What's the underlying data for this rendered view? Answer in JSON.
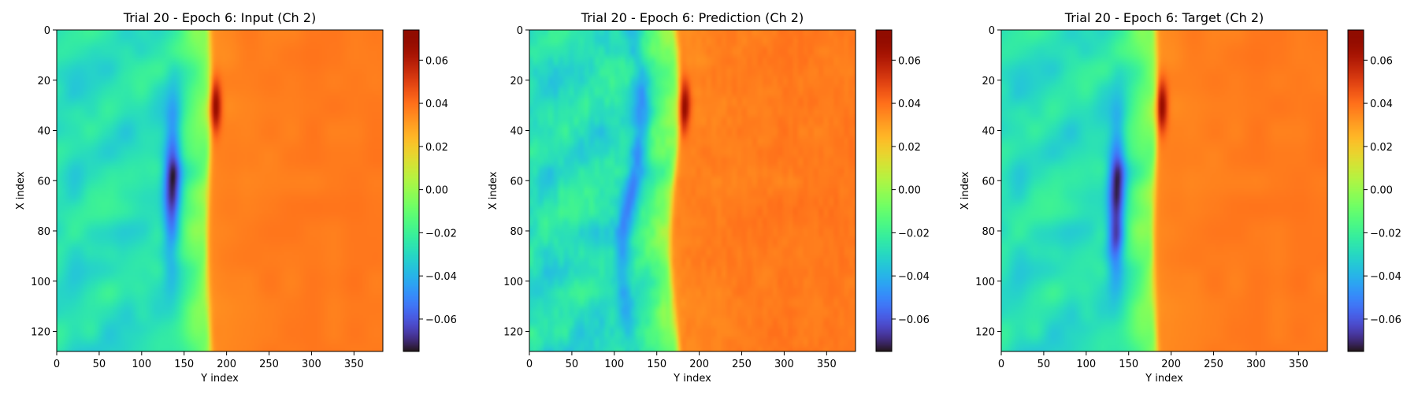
{
  "figure": {
    "panels": [
      {
        "title": "Trial 20 - Epoch 6: Input (Ch 2)",
        "field": "input"
      },
      {
        "title": "Trial 20 - Epoch 6: Prediction (Ch 2)",
        "field": "prediction"
      },
      {
        "title": "Trial 20 - Epoch 6: Target (Ch 2)",
        "field": "target"
      }
    ]
  },
  "chart_data": {
    "type": "heatmap",
    "colormap": "turbo",
    "xlabel": "Y index",
    "ylabel": "X index",
    "x_range": [
      0,
      384
    ],
    "y_range": [
      128,
      0
    ],
    "x_ticks": [
      0,
      50,
      100,
      150,
      200,
      250,
      300,
      350
    ],
    "y_ticks": [
      0,
      20,
      40,
      60,
      80,
      100,
      120
    ],
    "colorbar": {
      "range": [
        -0.075,
        0.074
      ],
      "ticks": [
        -0.06,
        -0.04,
        -0.02,
        0.0,
        0.02,
        0.04,
        0.06
      ],
      "tick_labels": [
        "−0.06",
        "−0.04",
        "−0.02",
        "0.00",
        "0.02",
        "0.04",
        "0.06"
      ]
    },
    "description": {
      "front_position_y_index": [
        178,
        170,
        180
      ],
      "left_region_value": -0.027,
      "right_region_value": 0.038,
      "peak_max": 0.074,
      "peak_min": -0.07
    }
  }
}
